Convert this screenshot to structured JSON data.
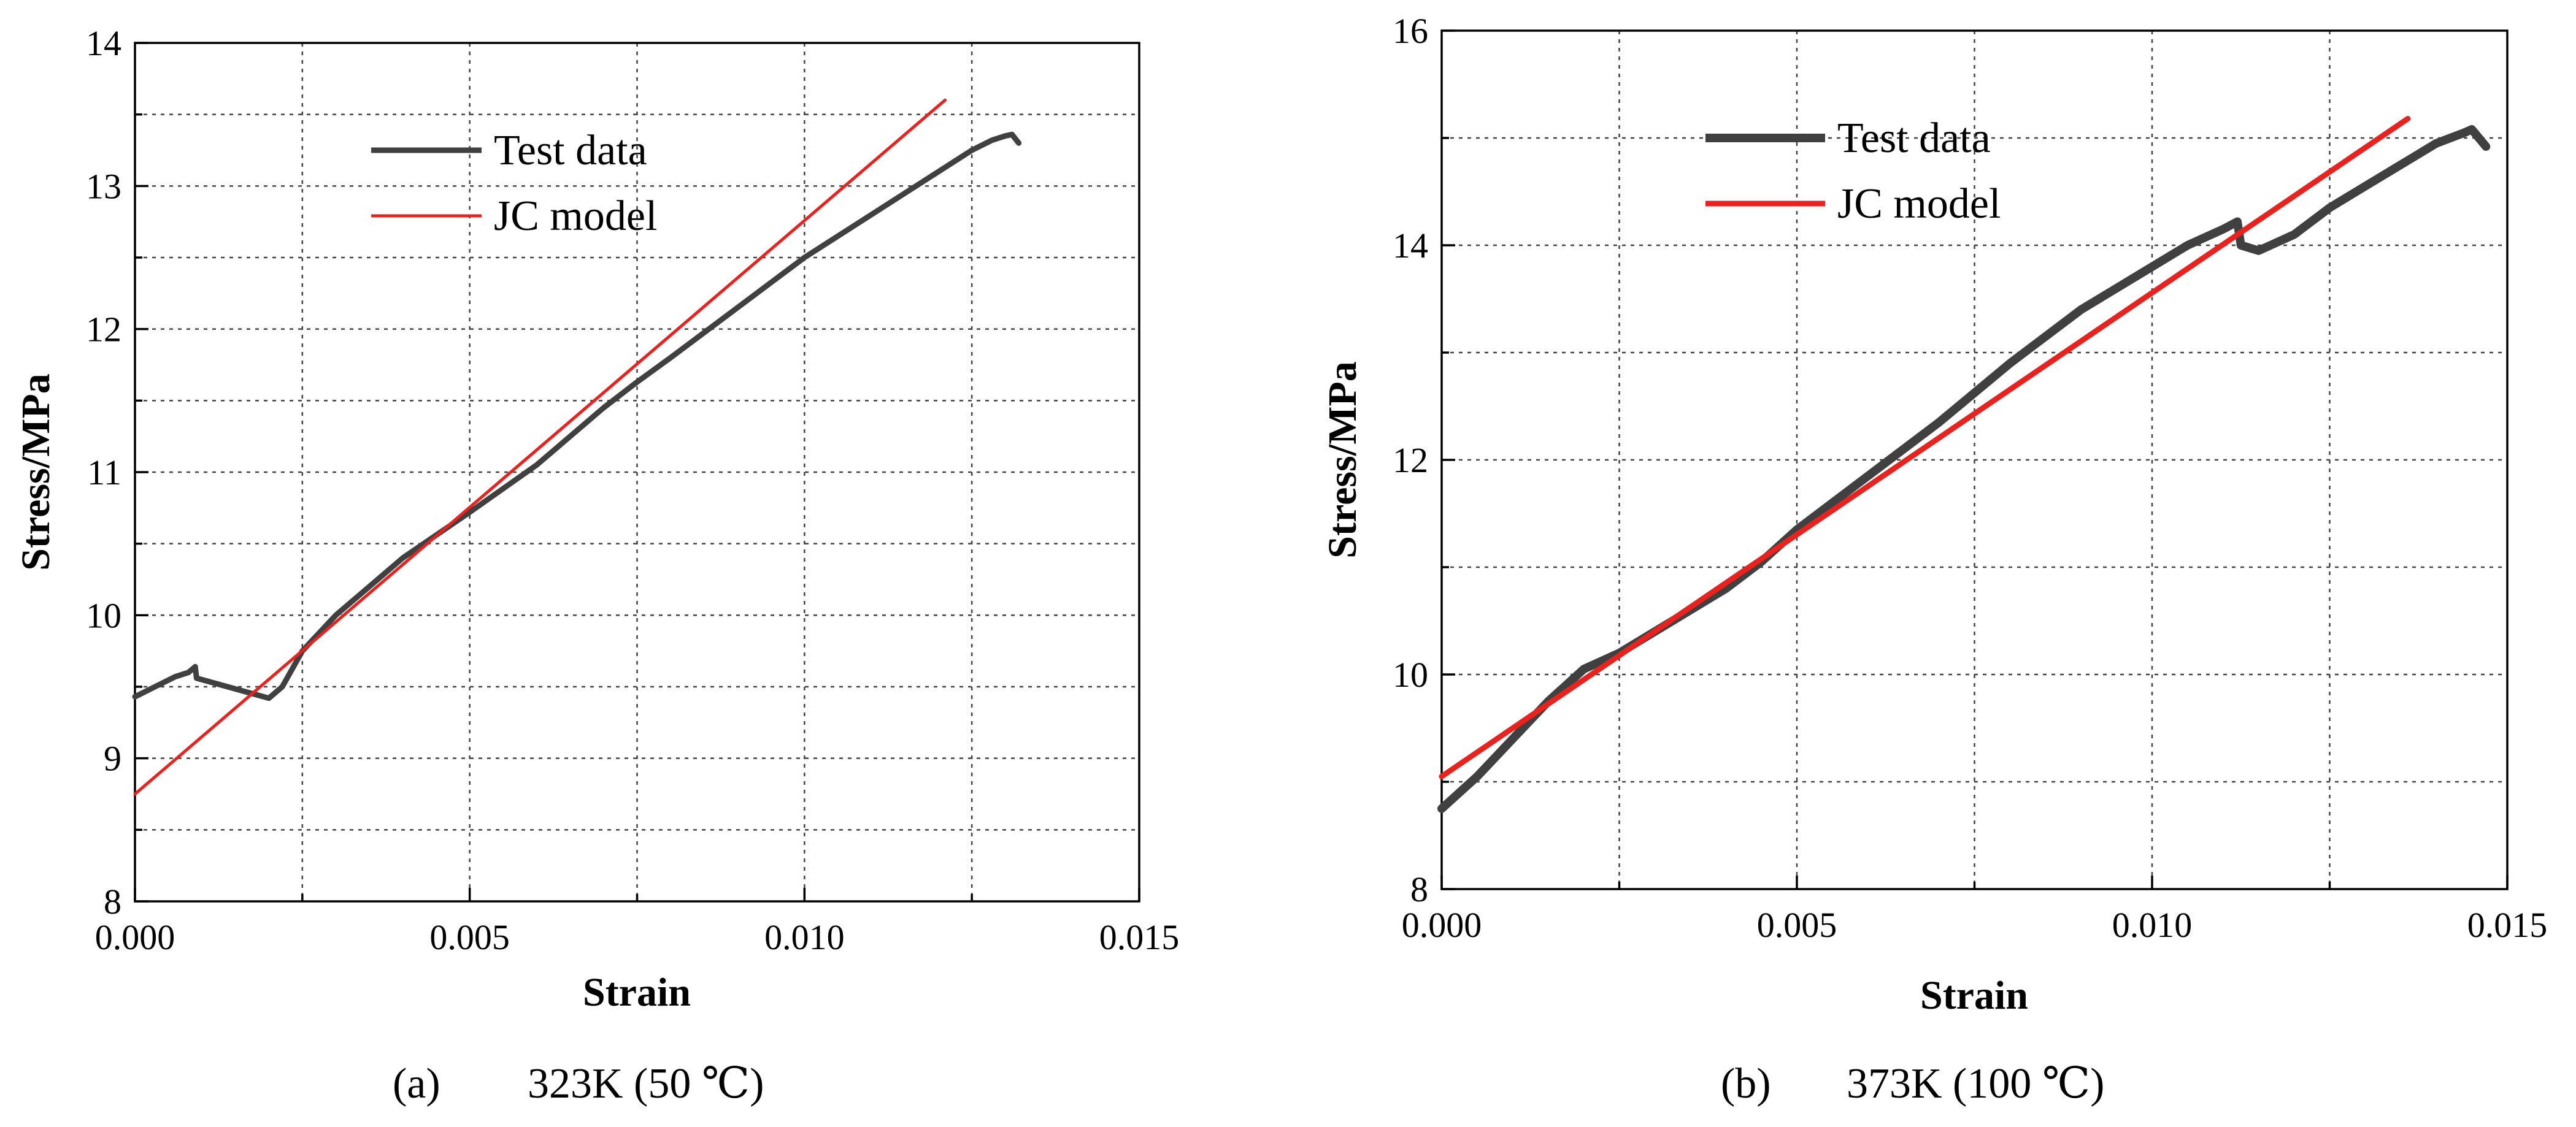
{
  "colors": {
    "test_series": "#404040",
    "model_series": "#e8231f",
    "grid": "#444444"
  },
  "chart_data": [
    {
      "type": "line",
      "xlabel": "Strain",
      "ylabel": "Stress/MPa",
      "xlim": [
        0,
        0.015
      ],
      "ylim": [
        8,
        14
      ],
      "x_ticks": [
        "0.000",
        "0.005",
        "0.010",
        "0.015"
      ],
      "y_ticks": [
        "8",
        "9",
        "10",
        "11",
        "12",
        "13",
        "14"
      ],
      "caption_letter": "(a)",
      "caption_text": "323K (50 ℃)",
      "legend": {
        "position": "top-left",
        "entries": [
          "Test data",
          "JC model"
        ]
      },
      "series": [
        {
          "name": "Test data",
          "x": [
            0,
            0.0003,
            0.0006,
            0.0008,
            0.0009,
            0.00092,
            0.002,
            0.0022,
            0.0025,
            0.003,
            0.0035,
            0.004,
            0.005,
            0.006,
            0.007,
            0.0075,
            0.008,
            0.009,
            0.01,
            0.011,
            0.012,
            0.0125,
            0.0128,
            0.013,
            0.0131,
            0.0132
          ],
          "y": [
            9.43,
            9.5,
            9.57,
            9.6,
            9.64,
            9.56,
            9.42,
            9.5,
            9.75,
            10.0,
            10.2,
            10.4,
            10.72,
            11.05,
            11.45,
            11.63,
            11.8,
            12.15,
            12.5,
            12.8,
            13.1,
            13.25,
            13.32,
            13.35,
            13.36,
            13.3
          ]
        },
        {
          "name": "JC model",
          "x": [
            0,
            0.0121
          ],
          "y": [
            8.75,
            13.6
          ]
        }
      ]
    },
    {
      "type": "line",
      "xlabel": "Strain",
      "ylabel": "Stress/MPa",
      "xlim": [
        0,
        0.015
      ],
      "ylim": [
        8,
        16
      ],
      "x_ticks": [
        "0.000",
        "0.005",
        "0.010",
        "0.015"
      ],
      "y_ticks": [
        "8",
        "10",
        "12",
        "14",
        "16"
      ],
      "caption_letter": "(b)",
      "caption_text": "373K (100 ℃)",
      "legend": {
        "position": "top-left",
        "entries": [
          "Test data",
          "JC model"
        ]
      },
      "series": [
        {
          "name": "Test data",
          "x": [
            0,
            0.0005,
            0.001,
            0.0015,
            0.002,
            0.0025,
            0.003,
            0.0035,
            0.004,
            0.0045,
            0.005,
            0.006,
            0.007,
            0.008,
            0.009,
            0.01,
            0.0105,
            0.011,
            0.0112,
            0.01125,
            0.0115,
            0.012,
            0.0125,
            0.013,
            0.0135,
            0.014,
            0.0144,
            0.0145,
            0.0147
          ],
          "y": [
            8.75,
            9.05,
            9.4,
            9.75,
            10.05,
            10.2,
            10.4,
            10.6,
            10.8,
            11.05,
            11.35,
            11.85,
            12.35,
            12.9,
            13.4,
            13.8,
            14.0,
            14.15,
            14.22,
            14.0,
            13.95,
            14.1,
            14.35,
            14.55,
            14.75,
            14.95,
            15.05,
            15.08,
            14.92
          ]
        },
        {
          "name": "JC model",
          "x": [
            0,
            0.0136
          ],
          "y": [
            9.05,
            15.18
          ]
        }
      ]
    }
  ]
}
